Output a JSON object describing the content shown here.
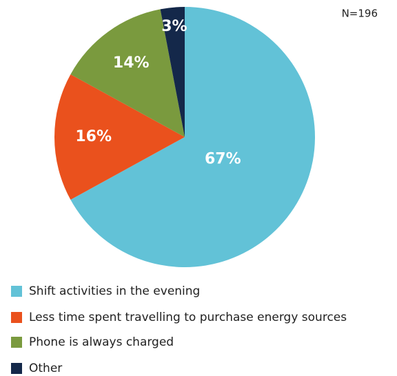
{
  "chart_data": {
    "type": "pie",
    "annotation": "N=196",
    "categories": [
      "Shift activities in the evening",
      "Less time spent travelling to purchase energy sources",
      "Phone is always charged",
      "Other"
    ],
    "values": [
      67,
      16,
      14,
      3
    ],
    "value_labels": [
      "67%",
      "16%",
      "14%",
      "3%"
    ],
    "colors": [
      "#62c2d7",
      "#ea511d",
      "#7a9a3e",
      "#14284a"
    ]
  }
}
